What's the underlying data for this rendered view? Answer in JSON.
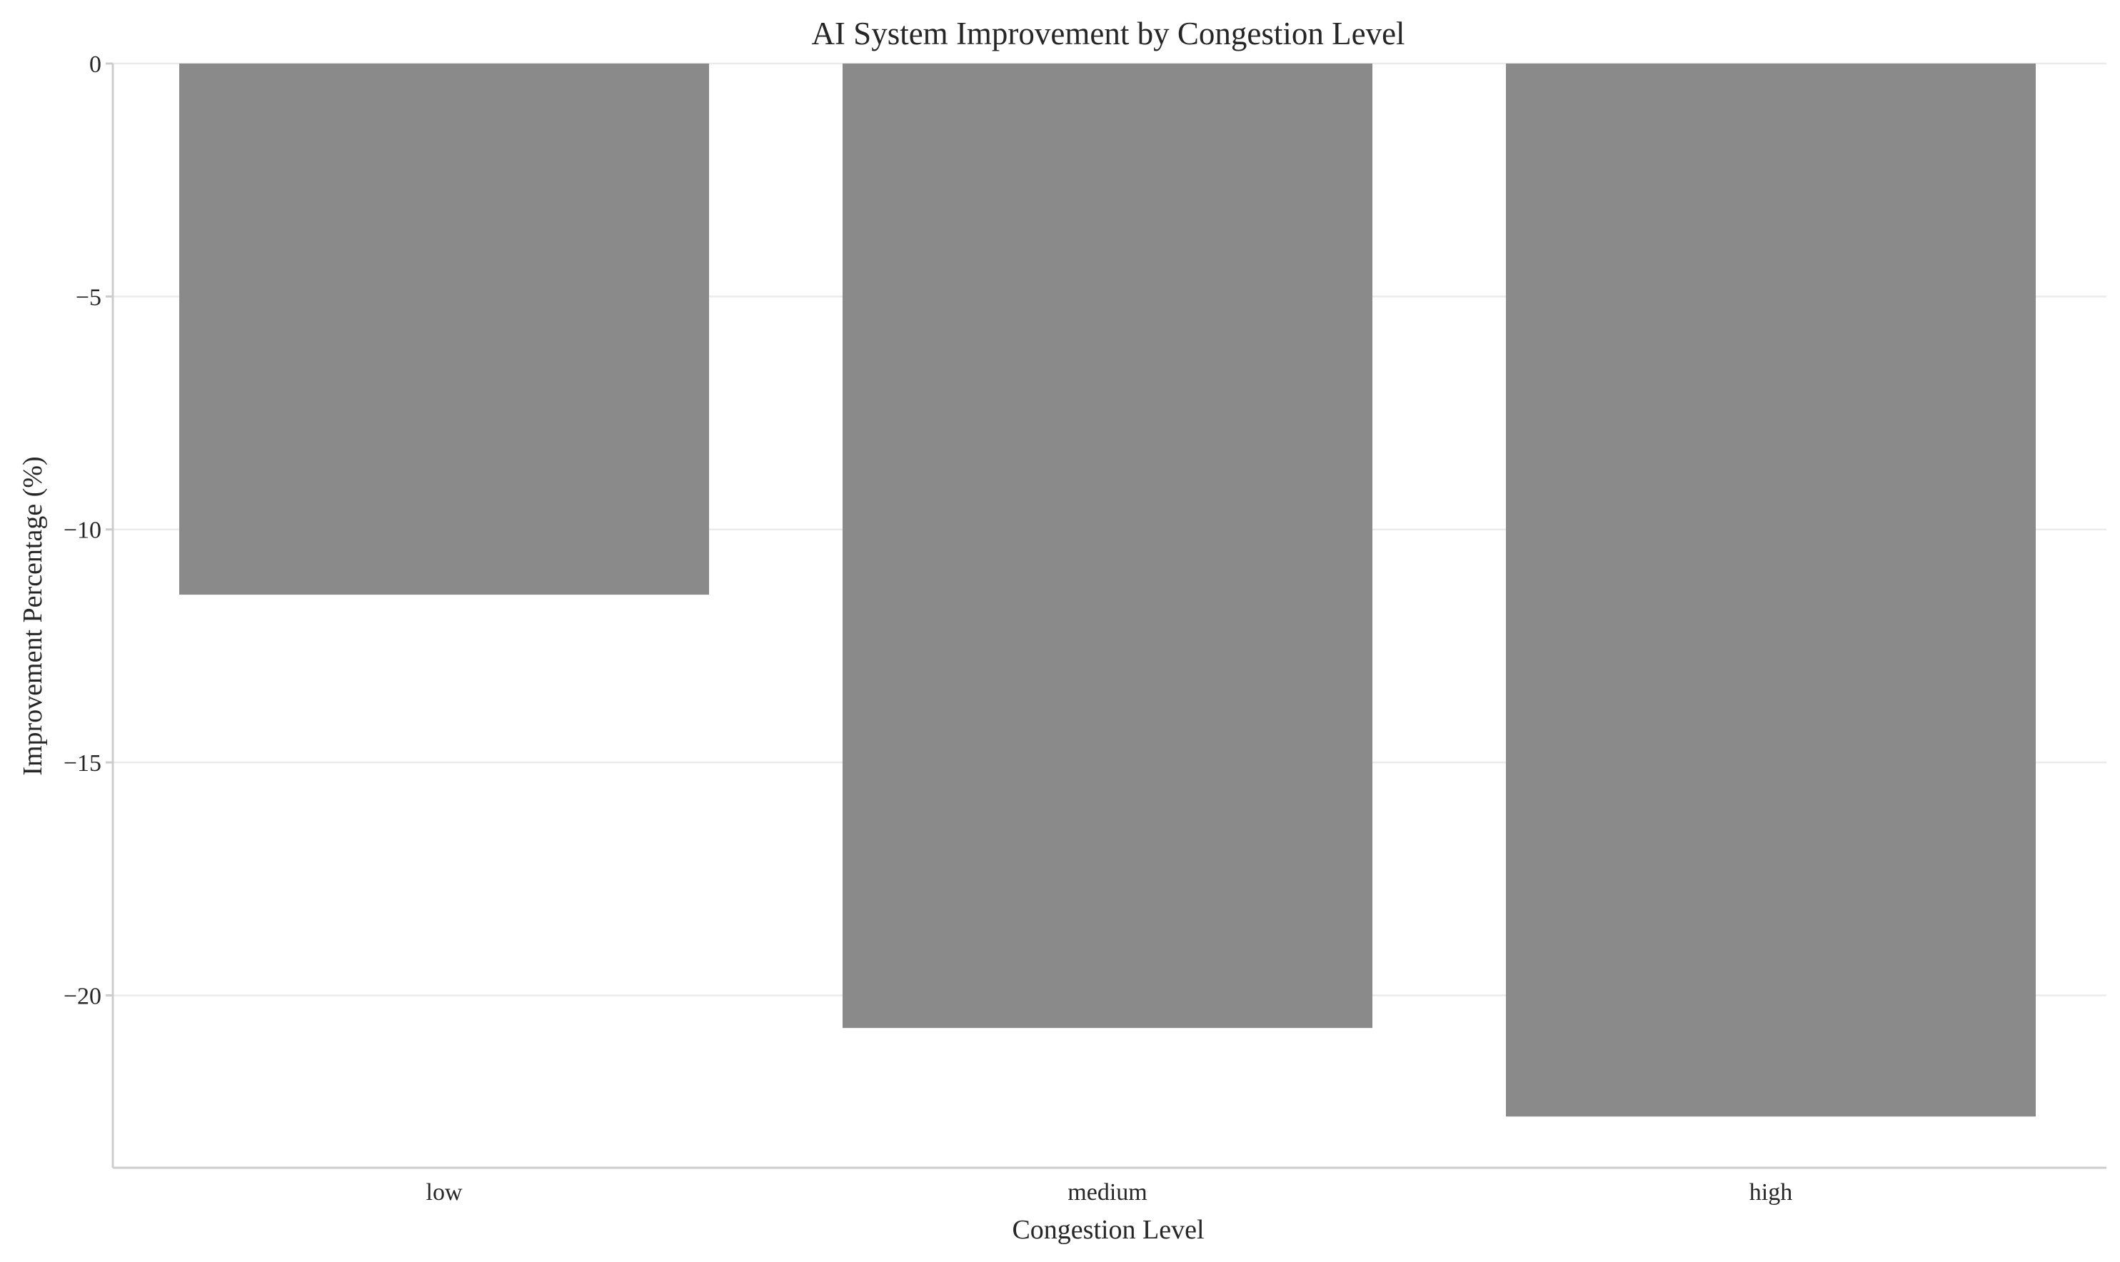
{
  "chart_data": {
    "type": "bar",
    "title": "AI System Improvement by Congestion Level",
    "xlabel": "Congestion Level",
    "ylabel": "Improvement Percentage (%)",
    "categories": [
      "low",
      "medium",
      "high"
    ],
    "values": [
      -11.4,
      -20.7,
      -22.6
    ],
    "ylim": [
      -23.7,
      0
    ],
    "yticks": [
      0,
      -5,
      -10,
      -15,
      -20
    ],
    "ytick_labels": [
      "0",
      "−5",
      "−10",
      "−15",
      "−20"
    ],
    "bar_color": "#8a8a8a",
    "grid": true,
    "grid_axis": "y",
    "legend": false
  }
}
